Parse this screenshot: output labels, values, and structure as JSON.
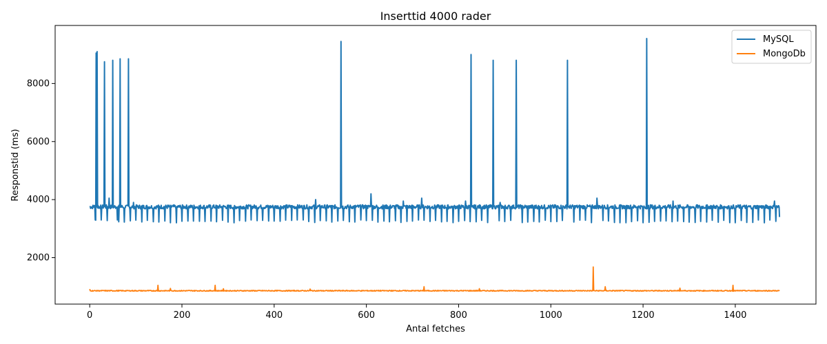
{
  "chart_data": {
    "type": "line",
    "title": "Inserttid 4000 rader",
    "xlabel": "Antal fetches",
    "ylabel": "Responstid (ms)",
    "xlim": [
      -75,
      1575
    ],
    "ylim": [
      400,
      10000
    ],
    "xticks": [
      0,
      200,
      400,
      600,
      800,
      1000,
      1200,
      1400
    ],
    "yticks": [
      2000,
      4000,
      6000,
      8000
    ],
    "grid": false,
    "legend_position": "top-right",
    "series": [
      {
        "name": "MySQL",
        "color": "#1f77b4",
        "baseline": 3750,
        "dip_interval": 12.5,
        "dip_value": 3300,
        "points": [
          [
            0,
            3750
          ],
          [
            10,
            3800
          ],
          [
            12,
            3300
          ],
          [
            14,
            9050
          ],
          [
            16,
            9100
          ],
          [
            18,
            3800
          ],
          [
            25,
            3300
          ],
          [
            32,
            8750
          ],
          [
            34,
            3750
          ],
          [
            42,
            4050
          ],
          [
            50,
            8800
          ],
          [
            52,
            3750
          ],
          [
            60,
            3300
          ],
          [
            66,
            8850
          ],
          [
            68,
            3750
          ],
          [
            80,
            3800
          ],
          [
            84,
            8850
          ],
          [
            86,
            3750
          ],
          [
            95,
            3900
          ],
          [
            490,
            4000
          ],
          [
            545,
            9450
          ],
          [
            547,
            3750
          ],
          [
            610,
            4200
          ],
          [
            612,
            3750
          ],
          [
            680,
            3950
          ],
          [
            720,
            4050
          ],
          [
            815,
            3950
          ],
          [
            827,
            9000
          ],
          [
            829,
            3750
          ],
          [
            875,
            8800
          ],
          [
            877,
            3750
          ],
          [
            890,
            3900
          ],
          [
            925,
            8800
          ],
          [
            927,
            3750
          ],
          [
            1036,
            8800
          ],
          [
            1038,
            3750
          ],
          [
            1100,
            4050
          ],
          [
            1208,
            9550
          ],
          [
            1210,
            3750
          ],
          [
            1265,
            3950
          ],
          [
            1485,
            3950
          ],
          [
            1496,
            3400
          ]
        ],
        "spikes": [
          [
            14,
            9050
          ],
          [
            16,
            9100
          ],
          [
            32,
            8750
          ],
          [
            50,
            8800
          ],
          [
            66,
            8850
          ],
          [
            84,
            8850
          ],
          [
            545,
            9450
          ],
          [
            827,
            9000
          ],
          [
            875,
            8800
          ],
          [
            925,
            8800
          ],
          [
            1036,
            8800
          ],
          [
            1208,
            9550
          ]
        ]
      },
      {
        "name": "MongoDb",
        "color": "#ff7f0e",
        "baseline": 860,
        "spikes": [
          [
            0,
            920
          ],
          [
            148,
            1050
          ],
          [
            175,
            940
          ],
          [
            272,
            1050
          ],
          [
            290,
            930
          ],
          [
            478,
            920
          ],
          [
            725,
            1000
          ],
          [
            845,
            930
          ],
          [
            1092,
            1680
          ],
          [
            1118,
            1000
          ],
          [
            1280,
            950
          ],
          [
            1395,
            1050
          ],
          [
            1496,
            880
          ]
        ]
      }
    ]
  }
}
